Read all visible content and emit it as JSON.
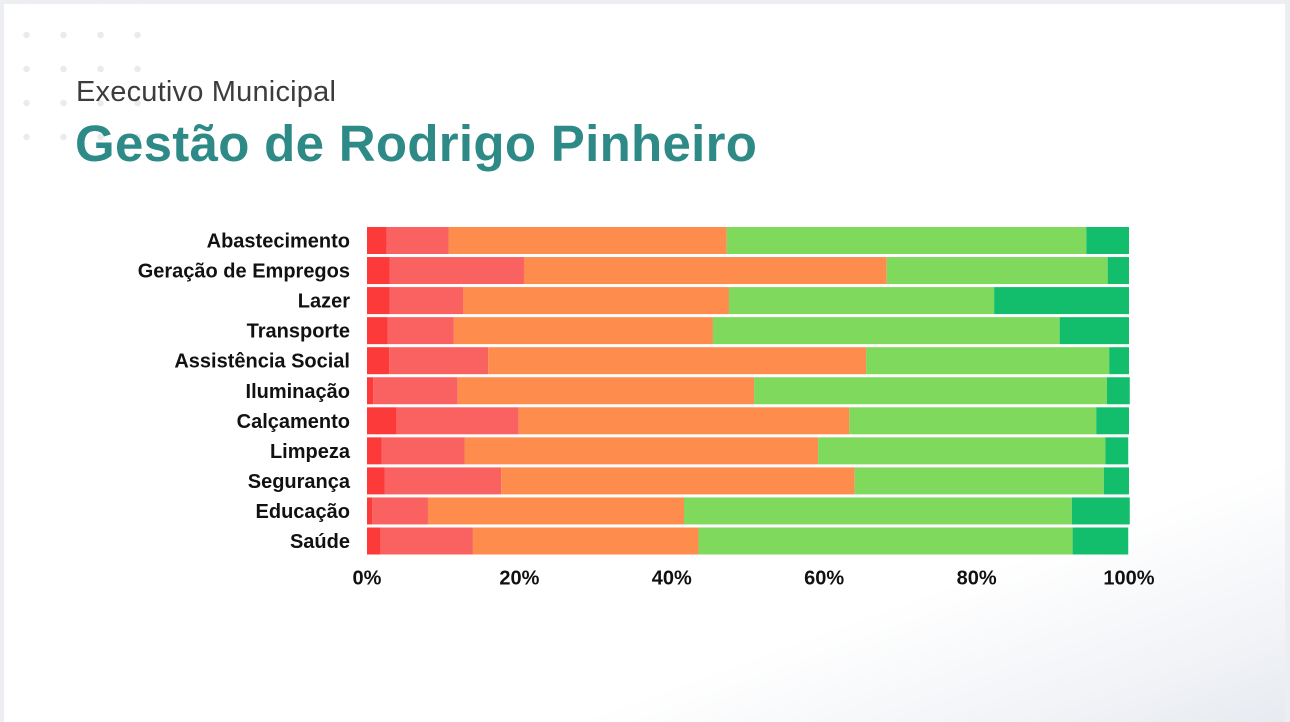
{
  "header": {
    "subtitle": "Executivo Municipal",
    "title": "Gestão de Rodrigo Pinheiro"
  },
  "colors": {
    "title": "#2d8a86",
    "series": [
      "#fc3a3a",
      "#fa6161",
      "#fd8c4d",
      "#7fd95c",
      "#12bd6c"
    ]
  },
  "chart_data": {
    "type": "bar",
    "orientation": "horizontal",
    "stacked": true,
    "normalized": true,
    "title": "",
    "xlabel": "",
    "ylabel": "",
    "xlim": [
      0,
      100
    ],
    "x_ticks": [
      "0%",
      "20%",
      "40%",
      "60%",
      "80%",
      "100%"
    ],
    "grid": false,
    "legend": "none",
    "categories": [
      "Abastecimento",
      "Geração de Empregos",
      "Lazer",
      "Transporte",
      "Assistência Social",
      "Iluminação",
      "Calçamento",
      "Limpeza",
      "Segurança",
      "Educação",
      "Saúde"
    ],
    "series": [
      {
        "values": [
          2.6,
          3.0,
          3.0,
          2.7,
          2.9,
          0.8,
          3.9,
          1.9,
          2.3,
          0.7,
          1.8
        ]
      },
      {
        "values": [
          8.1,
          17.6,
          9.6,
          8.7,
          13.0,
          11.1,
          16.0,
          10.9,
          15.3,
          7.3,
          12.1
        ]
      },
      {
        "values": [
          36.5,
          47.6,
          34.9,
          34.0,
          49.6,
          38.9,
          43.4,
          46.4,
          46.4,
          33.6,
          29.6
        ]
      },
      {
        "values": [
          47.2,
          29.0,
          34.8,
          45.5,
          31.9,
          46.3,
          32.4,
          37.7,
          32.7,
          50.9,
          49.1
        ]
      },
      {
        "values": [
          5.6,
          2.8,
          17.7,
          9.1,
          2.6,
          3.0,
          4.3,
          3.0,
          3.3,
          7.6,
          7.3
        ]
      }
    ]
  }
}
